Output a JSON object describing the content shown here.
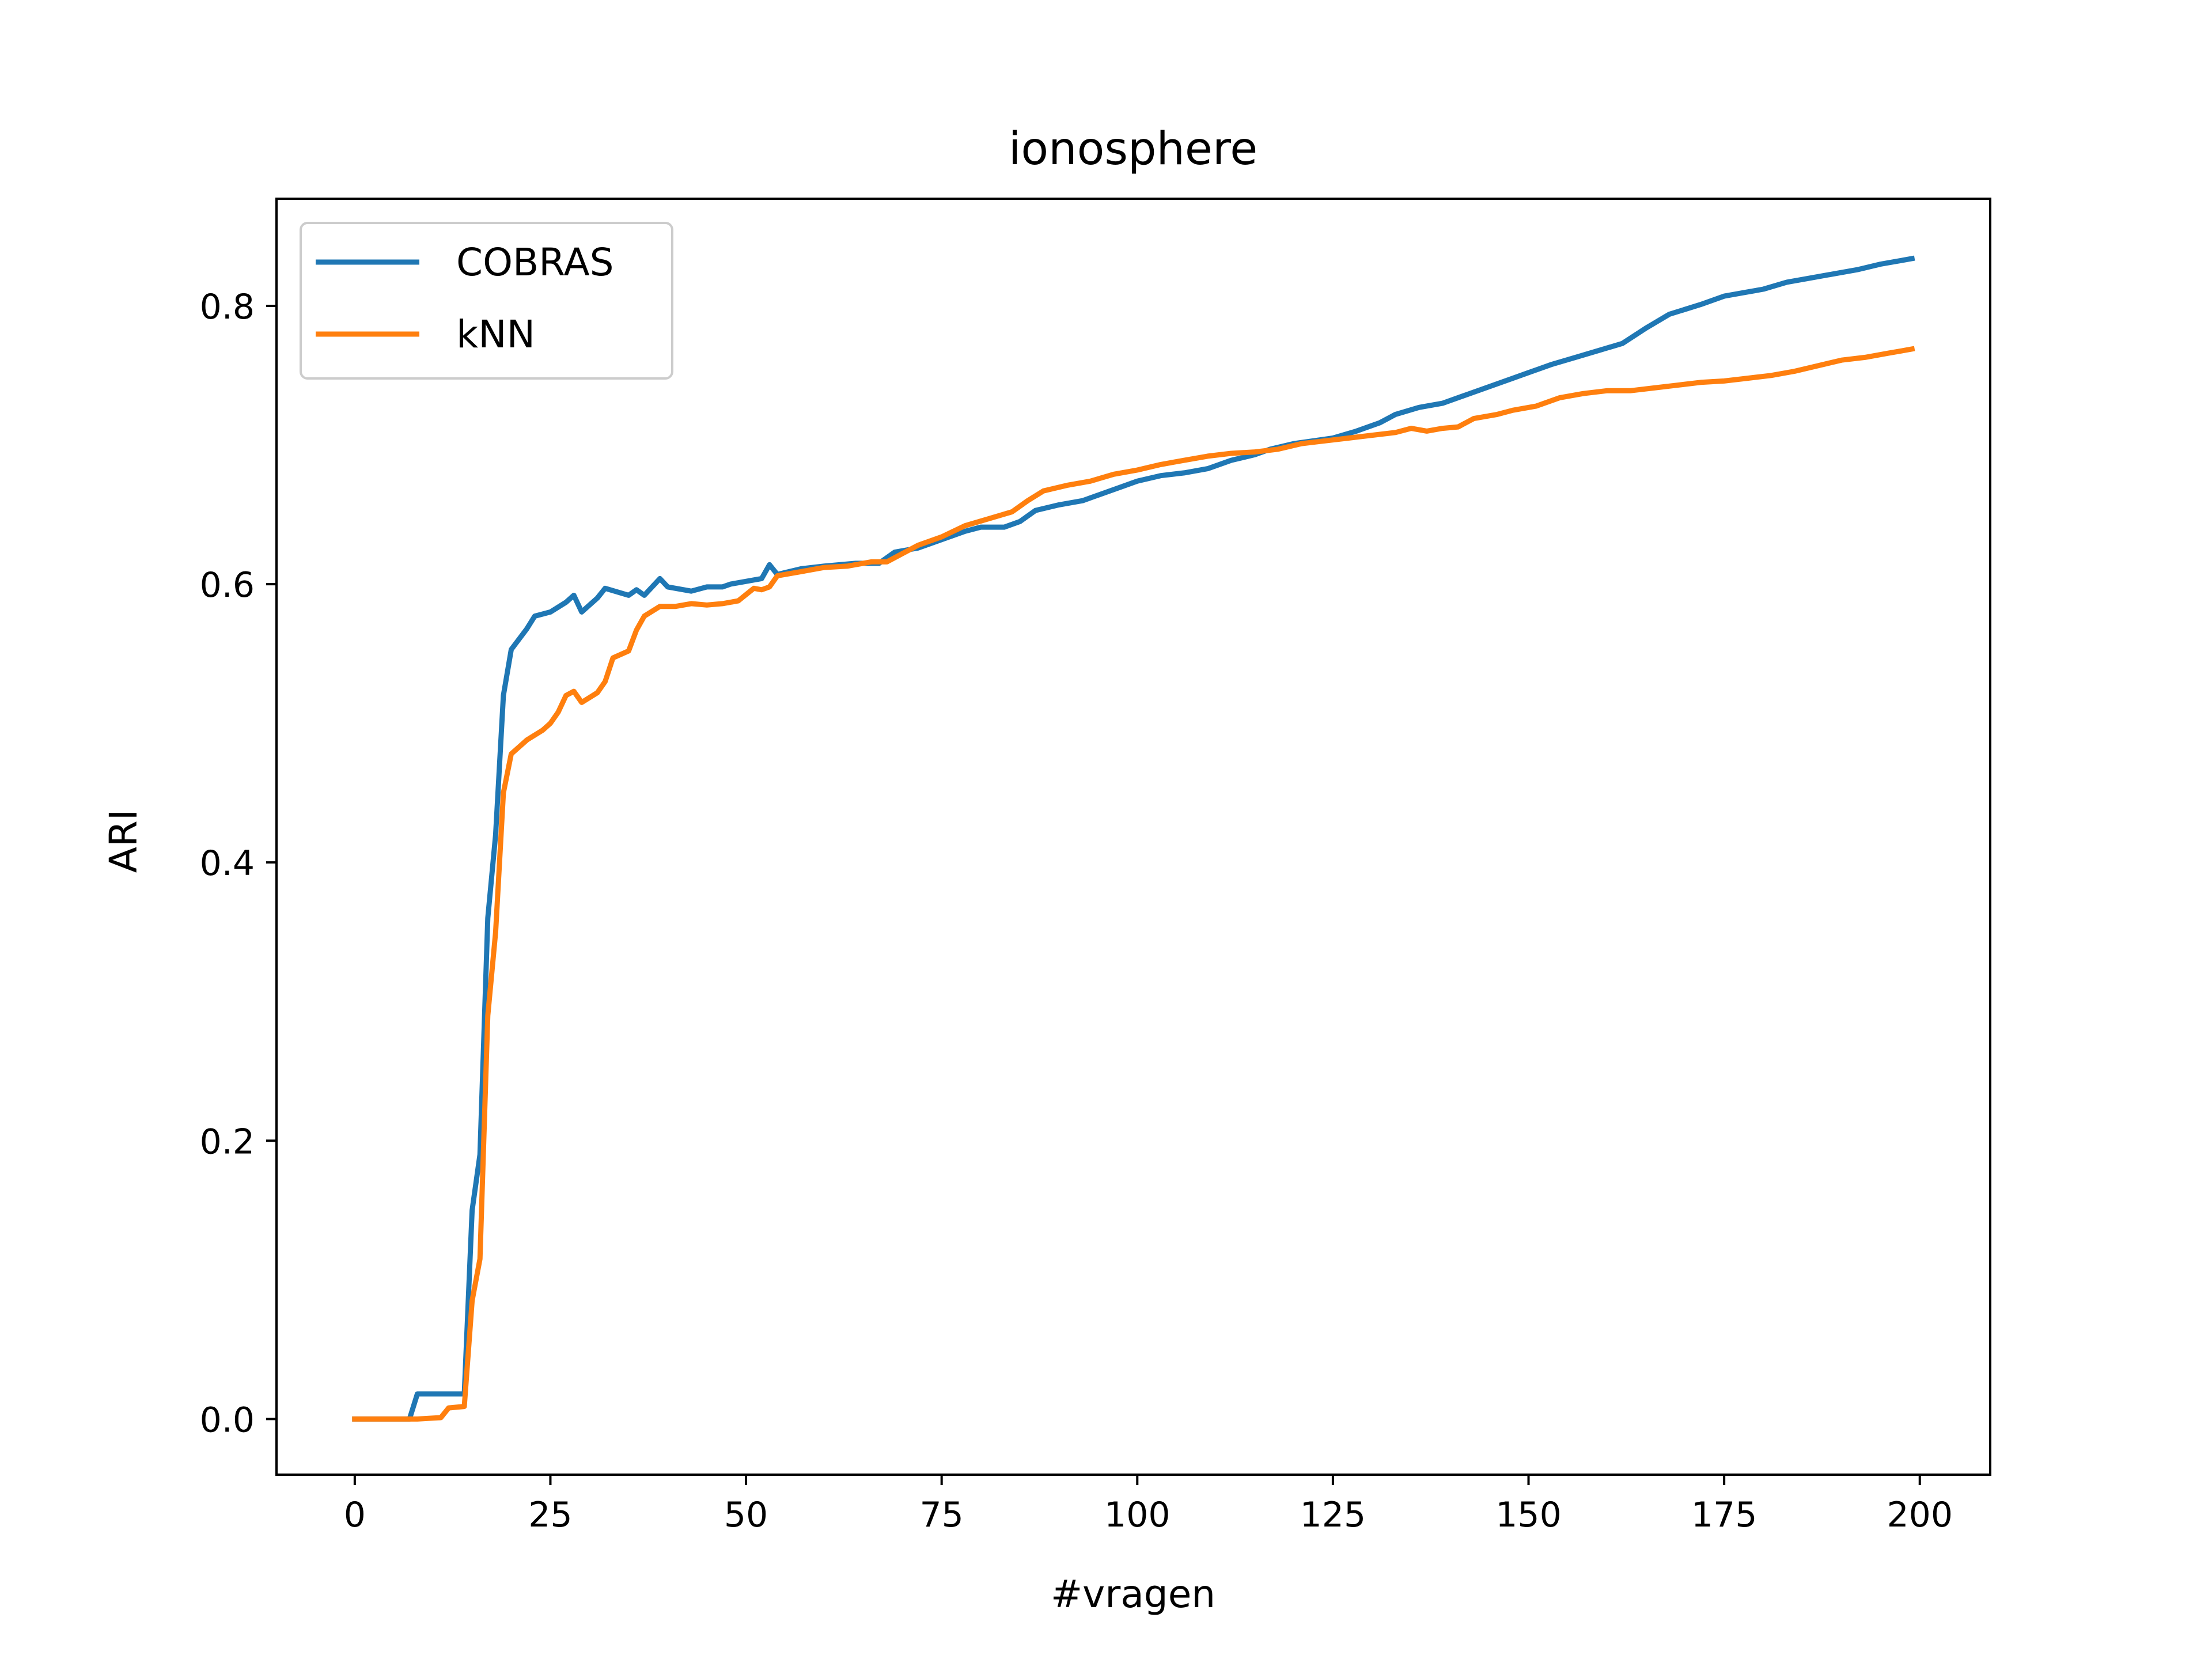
{
  "chart_data": {
    "type": "line",
    "title": "ionosphere",
    "xlabel": "#vragen",
    "ylabel": "ARI",
    "xlim": [
      -10,
      209
    ],
    "ylim": [
      -0.04,
      0.877
    ],
    "x_ticks": [
      0,
      25,
      50,
      75,
      100,
      125,
      150,
      175,
      200
    ],
    "x_tick_labels": [
      "0",
      "25",
      "50",
      "75",
      "100",
      "125",
      "150",
      "175",
      "200"
    ],
    "y_ticks": [
      0.0,
      0.2,
      0.4,
      0.6,
      0.8
    ],
    "y_tick_labels": [
      "0.0",
      "0.2",
      "0.4",
      "0.6",
      "0.8"
    ],
    "grid": false,
    "legend_position": "upper-left",
    "series": [
      {
        "name": "COBRAS",
        "color": "#1f77b4",
        "points": [
          [
            0,
            0.0
          ],
          [
            7,
            0.0
          ],
          [
            8,
            0.018
          ],
          [
            13,
            0.018
          ],
          [
            14,
            0.018
          ],
          [
            15,
            0.15
          ],
          [
            16,
            0.19
          ],
          [
            17,
            0.36
          ],
          [
            18,
            0.42
          ],
          [
            19,
            0.52
          ],
          [
            20,
            0.553
          ],
          [
            22,
            0.568
          ],
          [
            23,
            0.577
          ],
          [
            25,
            0.58
          ],
          [
            27,
            0.587
          ],
          [
            28,
            0.592
          ],
          [
            29,
            0.58
          ],
          [
            31,
            0.59
          ],
          [
            32,
            0.597
          ],
          [
            35,
            0.592
          ],
          [
            36,
            0.596
          ],
          [
            37,
            0.592
          ],
          [
            39,
            0.604
          ],
          [
            40,
            0.598
          ],
          [
            43,
            0.595
          ],
          [
            45,
            0.598
          ],
          [
            47,
            0.598
          ],
          [
            48,
            0.6
          ],
          [
            51,
            0.603
          ],
          [
            52,
            0.604
          ],
          [
            53,
            0.614
          ],
          [
            54,
            0.607
          ],
          [
            57,
            0.611
          ],
          [
            60,
            0.613
          ],
          [
            64,
            0.615
          ],
          [
            67,
            0.615
          ],
          [
            69,
            0.623
          ],
          [
            72,
            0.626
          ],
          [
            75,
            0.632
          ],
          [
            78,
            0.638
          ],
          [
            80,
            0.641
          ],
          [
            83,
            0.641
          ],
          [
            85,
            0.645
          ],
          [
            87,
            0.653
          ],
          [
            90,
            0.657
          ],
          [
            93,
            0.66
          ],
          [
            95,
            0.664
          ],
          [
            98,
            0.67
          ],
          [
            100,
            0.674
          ],
          [
            103,
            0.678
          ],
          [
            106,
            0.68
          ],
          [
            109,
            0.683
          ],
          [
            112,
            0.689
          ],
          [
            115,
            0.693
          ],
          [
            117,
            0.697
          ],
          [
            120,
            0.701
          ],
          [
            125,
            0.705
          ],
          [
            128,
            0.71
          ],
          [
            131,
            0.716
          ],
          [
            133,
            0.722
          ],
          [
            136,
            0.727
          ],
          [
            139,
            0.73
          ],
          [
            142,
            0.736
          ],
          [
            145,
            0.742
          ],
          [
            148,
            0.748
          ],
          [
            150,
            0.752
          ],
          [
            153,
            0.758
          ],
          [
            156,
            0.763
          ],
          [
            159,
            0.768
          ],
          [
            162,
            0.773
          ],
          [
            165,
            0.784
          ],
          [
            168,
            0.794
          ],
          [
            172,
            0.801
          ],
          [
            175,
            0.807
          ],
          [
            178,
            0.81
          ],
          [
            180,
            0.812
          ],
          [
            183,
            0.817
          ],
          [
            186,
            0.82
          ],
          [
            189,
            0.823
          ],
          [
            192,
            0.826
          ],
          [
            195,
            0.83
          ],
          [
            198,
            0.833
          ],
          [
            199,
            0.834
          ]
        ]
      },
      {
        "name": "kNN",
        "color": "#ff7f0e",
        "points": [
          [
            0,
            0.0
          ],
          [
            7,
            0.0
          ],
          [
            8,
            0.0
          ],
          [
            11,
            0.001
          ],
          [
            12,
            0.008
          ],
          [
            14,
            0.009
          ],
          [
            15,
            0.085
          ],
          [
            16,
            0.115
          ],
          [
            17,
            0.29
          ],
          [
            18,
            0.35
          ],
          [
            19,
            0.45
          ],
          [
            20,
            0.478
          ],
          [
            22,
            0.488
          ],
          [
            24,
            0.495
          ],
          [
            25,
            0.5
          ],
          [
            26,
            0.508
          ],
          [
            27,
            0.52
          ],
          [
            28,
            0.523
          ],
          [
            29,
            0.515
          ],
          [
            31,
            0.522
          ],
          [
            32,
            0.53
          ],
          [
            33,
            0.547
          ],
          [
            35,
            0.552
          ],
          [
            36,
            0.567
          ],
          [
            37,
            0.577
          ],
          [
            39,
            0.584
          ],
          [
            41,
            0.584
          ],
          [
            43,
            0.586
          ],
          [
            45,
            0.585
          ],
          [
            47,
            0.586
          ],
          [
            49,
            0.588
          ],
          [
            51,
            0.597
          ],
          [
            52,
            0.596
          ],
          [
            53,
            0.598
          ],
          [
            54,
            0.606
          ],
          [
            57,
            0.609
          ],
          [
            60,
            0.612
          ],
          [
            63,
            0.613
          ],
          [
            66,
            0.616
          ],
          [
            68,
            0.616
          ],
          [
            70,
            0.622
          ],
          [
            72,
            0.628
          ],
          [
            75,
            0.634
          ],
          [
            78,
            0.642
          ],
          [
            81,
            0.647
          ],
          [
            84,
            0.652
          ],
          [
            86,
            0.66
          ],
          [
            88,
            0.667
          ],
          [
            91,
            0.671
          ],
          [
            94,
            0.674
          ],
          [
            97,
            0.679
          ],
          [
            100,
            0.682
          ],
          [
            103,
            0.686
          ],
          [
            106,
            0.689
          ],
          [
            109,
            0.692
          ],
          [
            112,
            0.694
          ],
          [
            115,
            0.695
          ],
          [
            118,
            0.697
          ],
          [
            121,
            0.701
          ],
          [
            124,
            0.703
          ],
          [
            127,
            0.705
          ],
          [
            130,
            0.707
          ],
          [
            133,
            0.709
          ],
          [
            135,
            0.712
          ],
          [
            137,
            0.71
          ],
          [
            139,
            0.712
          ],
          [
            141,
            0.713
          ],
          [
            143,
            0.719
          ],
          [
            146,
            0.722
          ],
          [
            148,
            0.725
          ],
          [
            151,
            0.728
          ],
          [
            154,
            0.734
          ],
          [
            157,
            0.737
          ],
          [
            160,
            0.739
          ],
          [
            163,
            0.739
          ],
          [
            166,
            0.741
          ],
          [
            169,
            0.743
          ],
          [
            172,
            0.745
          ],
          [
            175,
            0.746
          ],
          [
            178,
            0.748
          ],
          [
            181,
            0.75
          ],
          [
            184,
            0.753
          ],
          [
            187,
            0.757
          ],
          [
            190,
            0.761
          ],
          [
            193,
            0.763
          ],
          [
            196,
            0.766
          ],
          [
            198,
            0.768
          ],
          [
            199,
            0.769
          ]
        ]
      }
    ]
  }
}
